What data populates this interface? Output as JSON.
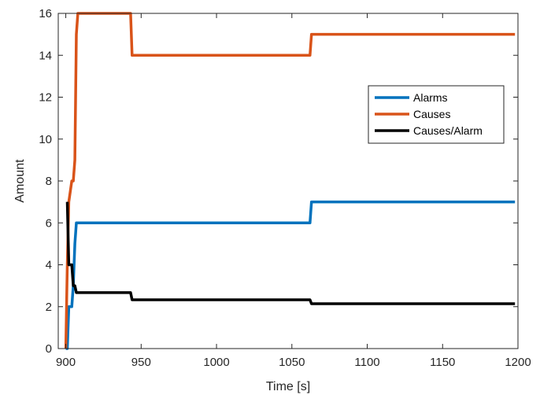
{
  "chart_data": {
    "type": "line",
    "title": "",
    "xlabel": "Time [s]",
    "ylabel": "Amount",
    "xlim": [
      895,
      1200
    ],
    "ylim": [
      0,
      16
    ],
    "xticks": [
      900,
      950,
      1000,
      1050,
      1100,
      1150,
      1200
    ],
    "yticks": [
      0,
      2,
      4,
      6,
      8,
      10,
      12,
      14,
      16
    ],
    "grid": false,
    "legend_position": "top-right",
    "series": [
      {
        "name": "Alarms",
        "color": "#0072BD",
        "x": [
          900,
          901,
          902,
          904,
          905,
          906,
          907,
          908,
          1062,
          1063,
          1198
        ],
        "y": [
          0,
          0,
          2,
          2,
          3,
          5,
          6,
          6,
          6,
          7,
          7
        ]
      },
      {
        "name": "Causes",
        "color": "#D95319",
        "x": [
          900,
          901,
          902,
          904,
          905,
          906,
          907,
          908,
          943,
          944,
          1062,
          1063,
          1198
        ],
        "y": [
          0,
          4,
          7,
          8,
          8,
          9,
          15,
          16,
          16,
          14,
          14,
          15,
          15
        ]
      },
      {
        "name": "Causes/Alarm",
        "color": "#000000",
        "x": [
          901,
          902,
          904,
          905,
          906,
          907,
          908,
          943,
          944,
          1062,
          1063,
          1198
        ],
        "y": [
          7,
          4,
          4,
          3,
          3,
          2.67,
          2.67,
          2.67,
          2.33,
          2.33,
          2.14,
          2.14
        ]
      }
    ]
  }
}
